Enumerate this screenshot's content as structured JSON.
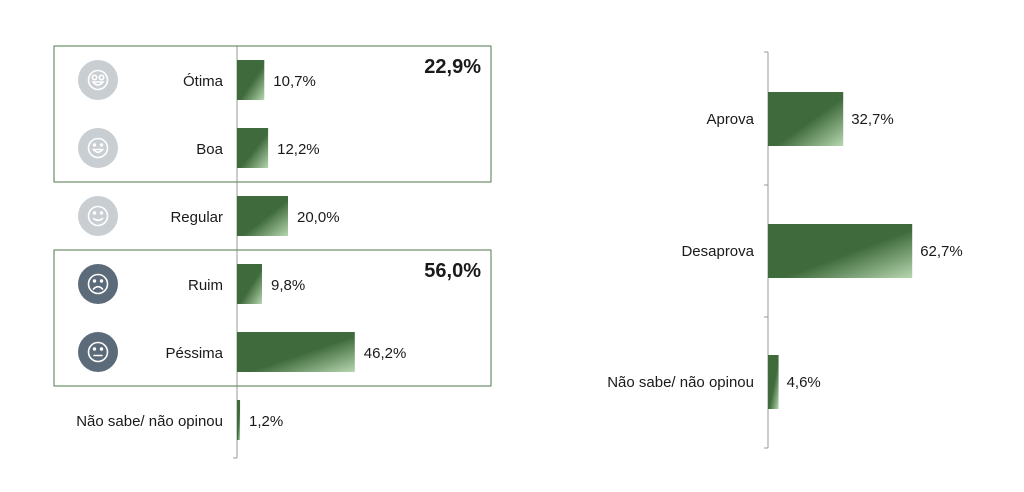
{
  "chart_data": [
    {
      "type": "bar",
      "orientation": "horizontal",
      "categories": [
        "Ótima",
        "Boa",
        "Regular",
        "Ruim",
        "Péssima",
        "Não sabe/ não opinou"
      ],
      "values": [
        10.7,
        12.2,
        20.0,
        9.8,
        46.2,
        1.2
      ],
      "value_labels": [
        "10,7%",
        "12,2%",
        "20,0%",
        "9,8%",
        "46,2%",
        "1,2%"
      ],
      "icons": [
        "very-happy-face-icon",
        "happy-face-icon",
        "neutral-smile-face-icon",
        "sad-face-icon",
        "very-sad-face-icon",
        ""
      ],
      "groups": [
        {
          "label": "22,9%",
          "categories": [
            "Ótima",
            "Boa"
          ]
        },
        {
          "label": "56,0%",
          "categories": [
            "Ruim",
            "Péssima"
          ]
        }
      ],
      "xlim": [
        0,
        100
      ],
      "grid": false,
      "title": "",
      "xlabel": "",
      "ylabel": ""
    },
    {
      "type": "bar",
      "orientation": "horizontal",
      "categories": [
        "Aprova",
        "Desaprova",
        "Não sabe/ não opinou"
      ],
      "values": [
        32.7,
        62.7,
        4.6
      ],
      "value_labels": [
        "32,7%",
        "62,7%",
        "4,6%"
      ],
      "xlim": [
        0,
        100
      ],
      "grid": false,
      "title": "",
      "xlabel": "",
      "ylabel": ""
    }
  ],
  "colors": {
    "bar_dark": "#3f6b3c",
    "bar_light": "#b7d6b0",
    "group_border": "#4d7a49",
    "axis": "#9a9a9a",
    "icon_light": "#c9ced3",
    "icon_dark": "#5c6b79",
    "text": "#1a1a1a"
  }
}
